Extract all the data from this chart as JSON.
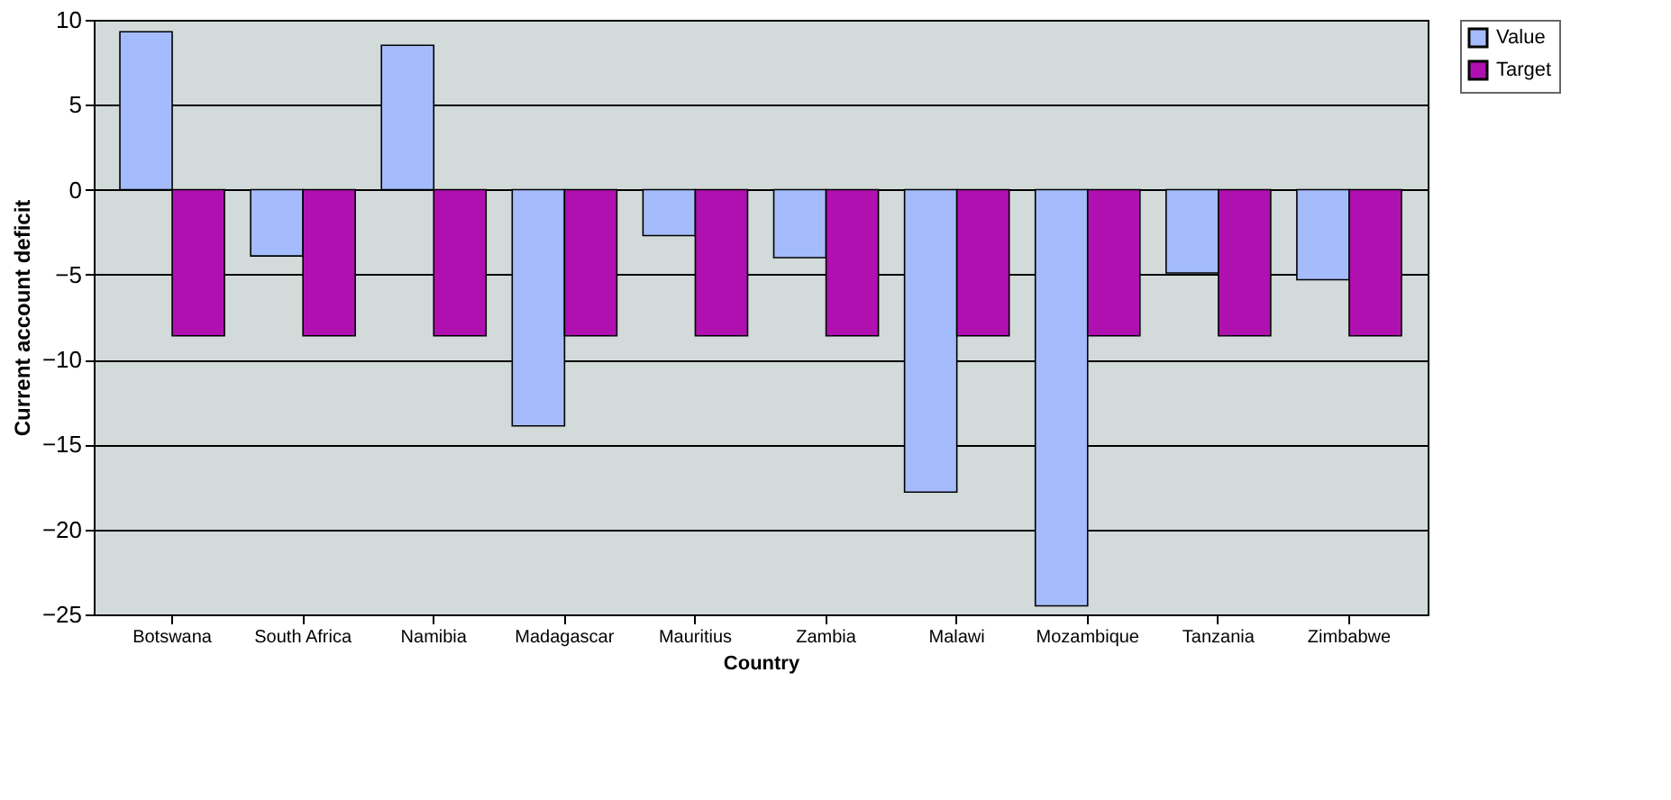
{
  "chart_data": {
    "type": "bar",
    "xlabel": "Country",
    "ylabel": "Current account deficit",
    "categories": [
      "Botswana",
      "South Africa",
      "Namibia",
      "Madagascar",
      "Mauritius",
      "Zambia",
      "Malawi",
      "Mozambique",
      "Tanzania",
      "Zimbabwe"
    ],
    "series": [
      {
        "name": "Value",
        "color": "#a4bcfc",
        "values": [
          9.3,
          -3.9,
          8.5,
          -13.9,
          -2.7,
          -4,
          -17.8,
          -24.5,
          -4.9,
          -5.3
        ]
      },
      {
        "name": "Target",
        "color": "#b010b0",
        "values": [
          -8.6,
          -8.6,
          -8.6,
          -8.6,
          -8.6,
          -8.6,
          -8.6,
          -8.6,
          -8.6,
          -8.6
        ]
      }
    ],
    "ylim": [
      -25,
      10
    ],
    "yticks": [
      -25,
      -20,
      -15,
      -10,
      -5,
      0,
      5,
      10
    ],
    "grid": "y",
    "legend": "right"
  }
}
